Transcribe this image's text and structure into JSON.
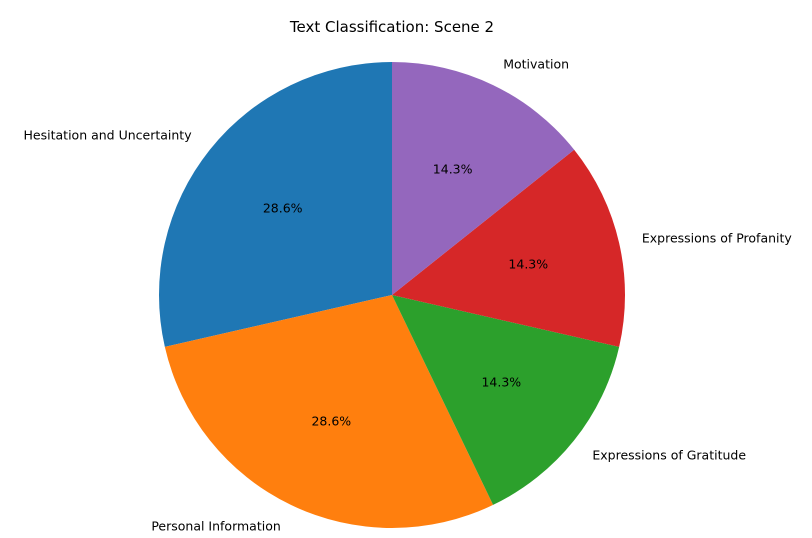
{
  "chart_data": {
    "type": "pie",
    "title": "Text Classification: Scene 2",
    "start_angle_deg": 90,
    "direction": "counterclockwise",
    "slices": [
      {
        "label": "Hesitation and Uncertainty",
        "value": 28.6,
        "pct_label": "28.6%",
        "color": "#1f77b4"
      },
      {
        "label": "Personal Information",
        "value": 28.6,
        "pct_label": "28.6%",
        "color": "#ff7f0e"
      },
      {
        "label": "Expressions of Gratitude",
        "value": 14.3,
        "pct_label": "14.3%",
        "color": "#2ca02c"
      },
      {
        "label": "Expressions of Profanity",
        "value": 14.3,
        "pct_label": "14.3%",
        "color": "#d62728"
      },
      {
        "label": "Motivation",
        "value": 14.3,
        "pct_label": "14.3%",
        "color": "#9467bd"
      }
    ]
  }
}
